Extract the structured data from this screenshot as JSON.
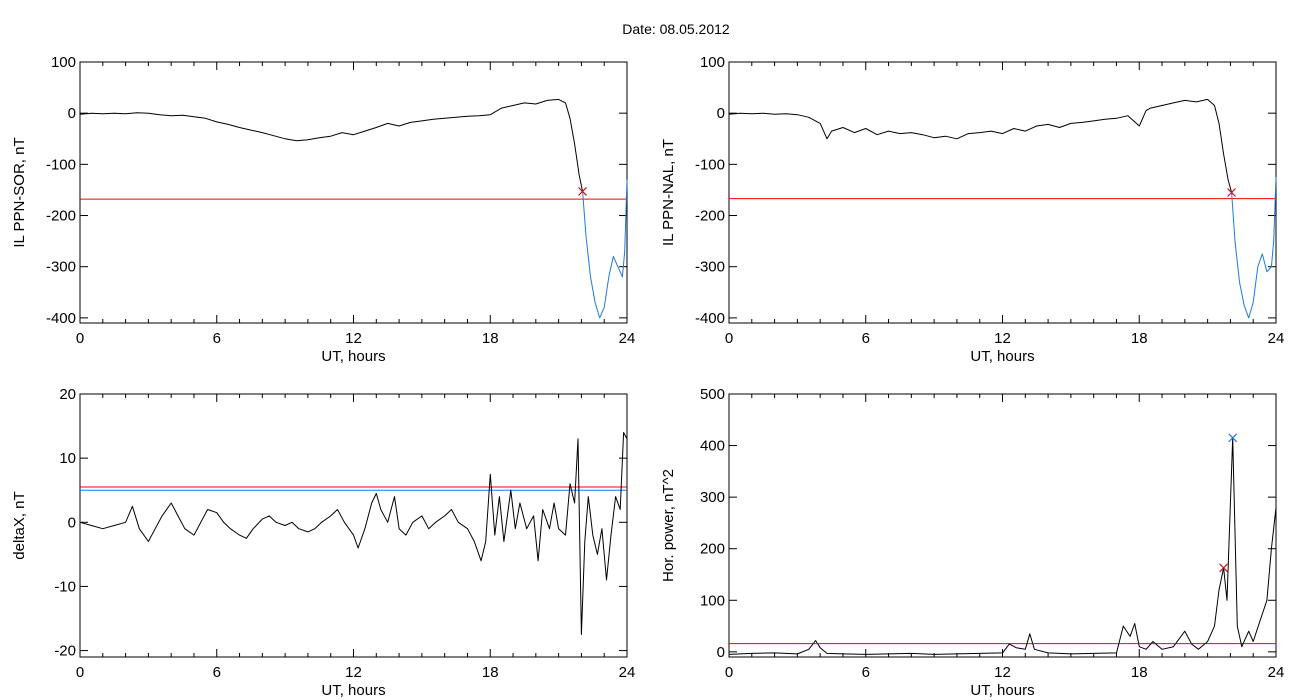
{
  "figure_title": "Date:  08.05.2012",
  "colors": {
    "black": "#000000",
    "red": "#ff0000",
    "blue": "#1f7bd8",
    "green": "#2fae2f"
  },
  "chart_data": [
    {
      "type": "line",
      "xlabel": "UT, hours",
      "ylabel": "IL PPN-SOR, nT",
      "xlim": [
        0,
        24
      ],
      "ylim": [
        -410,
        100
      ],
      "xticks": [
        0,
        6,
        12,
        18,
        24
      ],
      "yticks": [
        100,
        0,
        -100,
        -200,
        -300,
        -400
      ],
      "threshold": -168,
      "marker": {
        "x": 22.05,
        "y": -153,
        "symbol": "x"
      },
      "series": [
        {
          "role": "main",
          "color": "#000000",
          "points": [
            [
              0,
              -2
            ],
            [
              0.5,
              0
            ],
            [
              1,
              -1
            ],
            [
              1.5,
              0
            ],
            [
              2,
              -1
            ],
            [
              2.5,
              1
            ],
            [
              3,
              0
            ],
            [
              3.5,
              -3
            ],
            [
              4,
              -5
            ],
            [
              4.5,
              -4
            ],
            [
              5,
              -7
            ],
            [
              5.5,
              -10
            ],
            [
              6,
              -17
            ],
            [
              6.5,
              -22
            ],
            [
              7,
              -28
            ],
            [
              7.5,
              -33
            ],
            [
              8,
              -38
            ],
            [
              8.5,
              -44
            ],
            [
              9,
              -50
            ],
            [
              9.5,
              -54
            ],
            [
              10,
              -52
            ],
            [
              10.5,
              -48
            ],
            [
              11,
              -45
            ],
            [
              11.5,
              -38
            ],
            [
              12,
              -42
            ],
            [
              12.5,
              -35
            ],
            [
              13,
              -28
            ],
            [
              13.5,
              -20
            ],
            [
              14,
              -25
            ],
            [
              14.5,
              -18
            ],
            [
              15,
              -15
            ],
            [
              15.5,
              -12
            ],
            [
              16,
              -10
            ],
            [
              16.5,
              -8
            ],
            [
              17,
              -6
            ],
            [
              17.5,
              -5
            ],
            [
              18,
              -3
            ],
            [
              18.5,
              10
            ],
            [
              19,
              15
            ],
            [
              19.5,
              20
            ],
            [
              20,
              18
            ],
            [
              20.5,
              25
            ],
            [
              21,
              27
            ],
            [
              21.3,
              20
            ],
            [
              21.5,
              -10
            ],
            [
              21.7,
              -60
            ],
            [
              21.9,
              -120
            ],
            [
              22.05,
              -153
            ]
          ]
        },
        {
          "role": "storm",
          "color": "#1f7bd8",
          "points": [
            [
              22.05,
              -153
            ],
            [
              22.2,
              -240
            ],
            [
              22.4,
              -320
            ],
            [
              22.6,
              -370
            ],
            [
              22.8,
              -400
            ],
            [
              23,
              -380
            ],
            [
              23.2,
              -320
            ],
            [
              23.4,
              -280
            ],
            [
              23.6,
              -300
            ],
            [
              23.8,
              -320
            ],
            [
              23.9,
              -270
            ],
            [
              24,
              -130
            ]
          ]
        }
      ]
    },
    {
      "type": "line",
      "xlabel": "UT, hours",
      "ylabel": "IL PPN-NAL, nT",
      "xlim": [
        0,
        24
      ],
      "ylim": [
        -410,
        100
      ],
      "xticks": [
        0,
        6,
        12,
        18,
        24
      ],
      "yticks": [
        100,
        0,
        -100,
        -200,
        -300,
        -400
      ],
      "threshold": -167,
      "marker": {
        "x": 22.05,
        "y": -155,
        "symbol": "x"
      },
      "series": [
        {
          "role": "main",
          "color": "#000000",
          "points": [
            [
              0,
              -2
            ],
            [
              0.5,
              0
            ],
            [
              1,
              -1
            ],
            [
              1.5,
              0
            ],
            [
              2,
              -2
            ],
            [
              2.5,
              -1
            ],
            [
              3,
              -3
            ],
            [
              3.5,
              -8
            ],
            [
              4,
              -20
            ],
            [
              4.3,
              -50
            ],
            [
              4.5,
              -35
            ],
            [
              5,
              -28
            ],
            [
              5.5,
              -38
            ],
            [
              6,
              -30
            ],
            [
              6.5,
              -42
            ],
            [
              7,
              -35
            ],
            [
              7.5,
              -40
            ],
            [
              8,
              -38
            ],
            [
              8.5,
              -42
            ],
            [
              9,
              -48
            ],
            [
              9.5,
              -45
            ],
            [
              10,
              -50
            ],
            [
              10.5,
              -40
            ],
            [
              11,
              -38
            ],
            [
              11.5,
              -35
            ],
            [
              12,
              -40
            ],
            [
              12.5,
              -30
            ],
            [
              13,
              -35
            ],
            [
              13.5,
              -25
            ],
            [
              14,
              -22
            ],
            [
              14.5,
              -28
            ],
            [
              15,
              -20
            ],
            [
              15.5,
              -18
            ],
            [
              16,
              -15
            ],
            [
              16.5,
              -12
            ],
            [
              17,
              -10
            ],
            [
              17.5,
              -5
            ],
            [
              18,
              -25
            ],
            [
              18.3,
              5
            ],
            [
              18.5,
              10
            ],
            [
              19,
              15
            ],
            [
              19.5,
              20
            ],
            [
              20,
              25
            ],
            [
              20.5,
              22
            ],
            [
              21,
              27
            ],
            [
              21.3,
              15
            ],
            [
              21.5,
              -20
            ],
            [
              21.7,
              -80
            ],
            [
              21.9,
              -130
            ],
            [
              22.05,
              -155
            ]
          ]
        },
        {
          "role": "storm",
          "color": "#1f7bd8",
          "points": [
            [
              22.05,
              -155
            ],
            [
              22.2,
              -250
            ],
            [
              22.4,
              -330
            ],
            [
              22.6,
              -375
            ],
            [
              22.8,
              -400
            ],
            [
              23,
              -370
            ],
            [
              23.2,
              -300
            ],
            [
              23.4,
              -275
            ],
            [
              23.6,
              -310
            ],
            [
              23.8,
              -300
            ],
            [
              23.9,
              -250
            ],
            [
              24,
              -125
            ]
          ]
        }
      ]
    },
    {
      "type": "line",
      "xlabel": "UT, hours",
      "ylabel": "deltaX, nT",
      "xlim": [
        0,
        24
      ],
      "ylim": [
        -21,
        20
      ],
      "xticks": [
        0,
        6,
        12,
        18,
        24
      ],
      "yticks": [
        20,
        10,
        0,
        -10,
        -20
      ],
      "threshold": 5.5,
      "threshold2": 5.0,
      "series": [
        {
          "role": "main",
          "color": "#000000",
          "points": [
            [
              0,
              0
            ],
            [
              0.5,
              -0.5
            ],
            [
              1,
              -1
            ],
            [
              1.5,
              -0.5
            ],
            [
              2,
              0
            ],
            [
              2.3,
              2.5
            ],
            [
              2.6,
              -1
            ],
            [
              3,
              -3
            ],
            [
              3.3,
              -1
            ],
            [
              3.6,
              1
            ],
            [
              4,
              3
            ],
            [
              4.3,
              1
            ],
            [
              4.6,
              -1
            ],
            [
              5,
              -2
            ],
            [
              5.3,
              0
            ],
            [
              5.6,
              2
            ],
            [
              6,
              1.5
            ],
            [
              6.3,
              0
            ],
            [
              6.6,
              -1
            ],
            [
              7,
              -2
            ],
            [
              7.3,
              -2.5
            ],
            [
              7.6,
              -1
            ],
            [
              8,
              0.5
            ],
            [
              8.3,
              1
            ],
            [
              8.6,
              0
            ],
            [
              9,
              -0.5
            ],
            [
              9.3,
              0
            ],
            [
              9.6,
              -1
            ],
            [
              10,
              -1.5
            ],
            [
              10.3,
              -1
            ],
            [
              10.6,
              0
            ],
            [
              11,
              1
            ],
            [
              11.3,
              2
            ],
            [
              11.6,
              0
            ],
            [
              12,
              -2
            ],
            [
              12.2,
              -4
            ],
            [
              12.5,
              -1
            ],
            [
              12.8,
              3
            ],
            [
              13,
              4.5
            ],
            [
              13.2,
              2
            ],
            [
              13.5,
              0
            ],
            [
              13.8,
              4
            ],
            [
              14,
              -1
            ],
            [
              14.3,
              -2
            ],
            [
              14.6,
              0
            ],
            [
              15,
              1
            ],
            [
              15.3,
              -1
            ],
            [
              15.6,
              0
            ],
            [
              16,
              1
            ],
            [
              16.3,
              2
            ],
            [
              16.6,
              0
            ],
            [
              17,
              -1
            ],
            [
              17.3,
              -3
            ],
            [
              17.6,
              -6
            ],
            [
              17.8,
              -3
            ],
            [
              18,
              7.5
            ],
            [
              18.2,
              -2
            ],
            [
              18.4,
              4
            ],
            [
              18.6,
              -3
            ],
            [
              18.9,
              5
            ],
            [
              19.1,
              -1
            ],
            [
              19.3,
              3
            ],
            [
              19.6,
              -1
            ],
            [
              19.9,
              1
            ],
            [
              20.1,
              -6
            ],
            [
              20.3,
              2
            ],
            [
              20.6,
              -1
            ],
            [
              20.8,
              3
            ],
            [
              21,
              -1
            ],
            [
              21.3,
              -2
            ],
            [
              21.5,
              6
            ],
            [
              21.7,
              3
            ],
            [
              21.85,
              13
            ],
            [
              22,
              -17.5
            ],
            [
              22.15,
              -3
            ],
            [
              22.3,
              4
            ],
            [
              22.5,
              -2
            ],
            [
              22.7,
              -5
            ],
            [
              22.9,
              -1
            ],
            [
              23.1,
              -9
            ],
            [
              23.3,
              -2
            ],
            [
              23.5,
              4
            ],
            [
              23.7,
              2
            ],
            [
              23.85,
              14
            ],
            [
              24,
              13
            ]
          ]
        }
      ]
    },
    {
      "type": "line",
      "xlabel": "UT, hours",
      "ylabel": "Hor. power, nT^2",
      "xlim": [
        0,
        24
      ],
      "ylim": [
        -10,
        500
      ],
      "xticks": [
        0,
        6,
        12,
        18,
        24
      ],
      "yticks": [
        500,
        400,
        300,
        200,
        100,
        0
      ],
      "threshold": 16,
      "marker": {
        "x": 21.7,
        "y": 163,
        "symbol": "x"
      },
      "marker2": {
        "x": 22.1,
        "y": 415,
        "symbol": "x"
      },
      "series": [
        {
          "role": "main",
          "color": "#000000",
          "points": [
            [
              0,
              -5
            ],
            [
              1,
              -3
            ],
            [
              2,
              -2
            ],
            [
              3,
              -4
            ],
            [
              3.5,
              5
            ],
            [
              3.8,
              22
            ],
            [
              4,
              8
            ],
            [
              4.3,
              -3
            ],
            [
              5,
              -4
            ],
            [
              6,
              -5
            ],
            [
              7,
              -4
            ],
            [
              8,
              -3
            ],
            [
              9,
              -5
            ],
            [
              10,
              -4
            ],
            [
              11,
              -3
            ],
            [
              12,
              -2
            ],
            [
              12.3,
              15
            ],
            [
              12.6,
              8
            ],
            [
              13,
              5
            ],
            [
              13.2,
              35
            ],
            [
              13.4,
              5
            ],
            [
              14,
              -2
            ],
            [
              15,
              -4
            ],
            [
              16,
              -3
            ],
            [
              17,
              -2
            ],
            [
              17.3,
              50
            ],
            [
              17.6,
              30
            ],
            [
              17.8,
              55
            ],
            [
              18,
              10
            ],
            [
              18.3,
              5
            ],
            [
              18.6,
              20
            ],
            [
              19,
              5
            ],
            [
              19.5,
              10
            ],
            [
              20,
              40
            ],
            [
              20.3,
              15
            ],
            [
              20.6,
              5
            ],
            [
              21,
              20
            ],
            [
              21.3,
              50
            ],
            [
              21.5,
              120
            ],
            [
              21.7,
              163
            ],
            [
              21.85,
              100
            ],
            [
              22.1,
              415
            ],
            [
              22.3,
              50
            ],
            [
              22.5,
              10
            ],
            [
              22.8,
              40
            ],
            [
              23,
              20
            ],
            [
              23.3,
              60
            ],
            [
              23.6,
              100
            ],
            [
              23.8,
              200
            ],
            [
              24,
              280
            ]
          ]
        }
      ]
    }
  ]
}
